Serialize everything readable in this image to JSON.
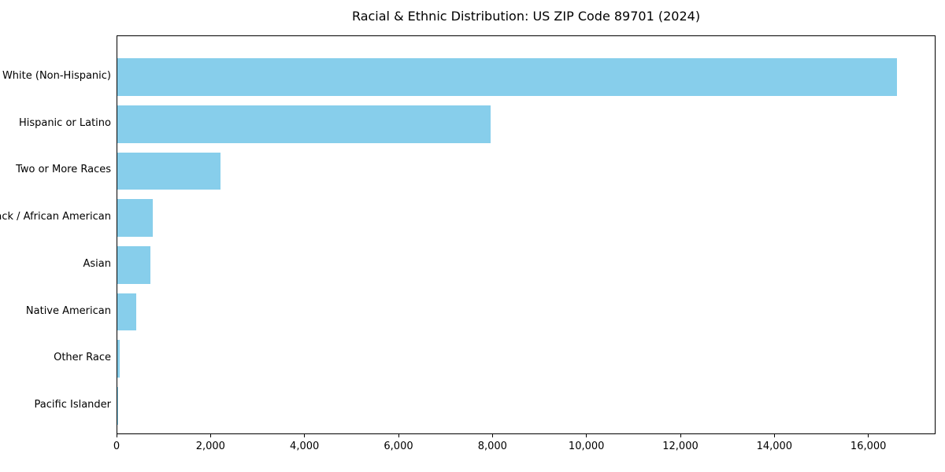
{
  "chart_data": {
    "type": "bar",
    "orientation": "horizontal",
    "title": "Racial & Ethnic Distribution: US ZIP Code 89701 (2024)",
    "categories": [
      "White (Non-Hispanic)",
      "Hispanic or Latino",
      "Two or More Races",
      "Black / African American",
      "Asian",
      "Native American",
      "Other Race",
      "Pacific Islander"
    ],
    "values": [
      16600,
      7950,
      2200,
      750,
      700,
      400,
      50,
      10
    ],
    "bar_color": "#87CEEB",
    "xlabel": "",
    "ylabel": "",
    "xlim": [
      0,
      17430
    ],
    "xticks": [
      0,
      2000,
      4000,
      6000,
      8000,
      10000,
      12000,
      14000,
      16000
    ],
    "xtick_labels": [
      "0",
      "2,000",
      "4,000",
      "6,000",
      "8,000",
      "10,000",
      "12,000",
      "14,000",
      "16,000"
    ],
    "grid": false,
    "legend": null
  }
}
